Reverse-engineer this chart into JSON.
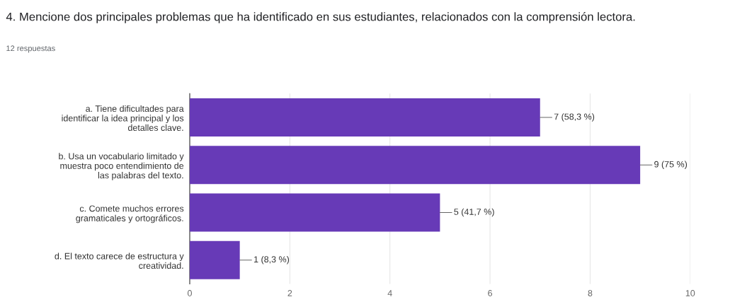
{
  "chart_data": {
    "type": "bar",
    "orientation": "horizontal",
    "title": "4. Mencione dos principales problemas que ha identificado en sus estudiantes, relacionados con la comprensión lectora.",
    "subtitle": "12 respuestas",
    "categories": [
      "a. Tiene dificultades para\nidentificar la idea principal y los\ndetalles clave.",
      "b. Usa un vocabulario limitado y\nmuestra poco entendimiento de\nlas palabras del texto.",
      "c. Comete muchos errores\ngramaticales y ortográficos.",
      "d. El texto carece de estructura y\ncreatividad."
    ],
    "values": [
      7,
      9,
      5,
      1
    ],
    "value_labels": [
      "7 (58,3 %)",
      "9 (75 %)",
      "5 (41,7 %)",
      "1 (8,3 %)"
    ],
    "color": "#673ab7",
    "xlim": [
      0,
      10
    ],
    "xticks": [
      0,
      2,
      4,
      6,
      8,
      10
    ],
    "grid": "x",
    "legend": false
  }
}
